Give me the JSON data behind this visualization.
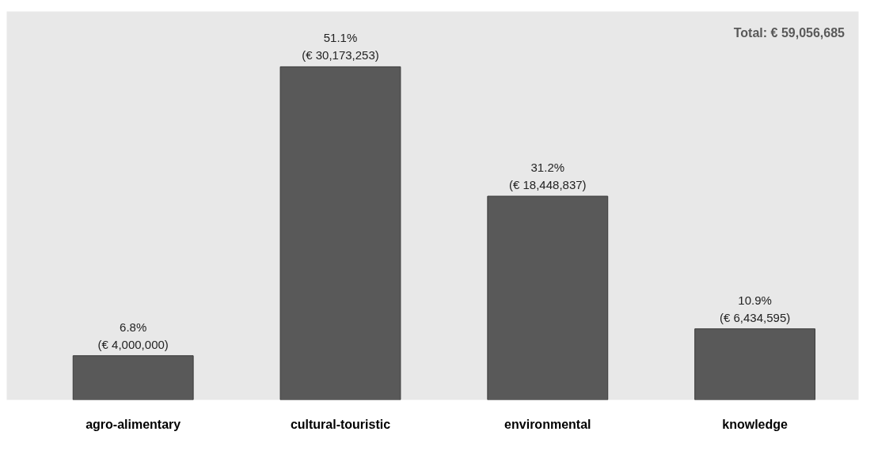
{
  "chart_data": {
    "type": "bar",
    "categories": [
      "agro-alimentary",
      "cultural-touristic",
      "environmental",
      "knowledge"
    ],
    "values": [
      4000000,
      30173253,
      18448837,
      6434595
    ],
    "color": "#595959",
    "value_labels": [
      "6.8%\n(€ 4,000,000)",
      "51.1%\n(€ 30,173,253)",
      "31.2%\n(€ 18,448,837)",
      "10.9%\n(€ 6,434,595)"
    ],
    "annotations": [
      "Total:  € 59,056,685"
    ]
  }
}
